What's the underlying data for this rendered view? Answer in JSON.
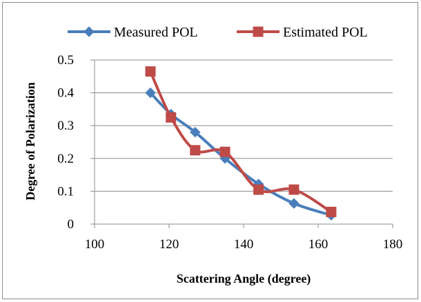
{
  "chart_data": {
    "type": "line",
    "title": "",
    "xlabel": "Scattering Angle (degree)",
    "ylabel": "Degree of Polarization",
    "xlim": [
      100,
      180
    ],
    "ylim": [
      0,
      0.5
    ],
    "x_ticks": [
      "100",
      "120",
      "140",
      "160",
      "180"
    ],
    "y_ticks": [
      "0",
      "0.1",
      "0.2",
      "0.3",
      "0.4",
      "0.5"
    ],
    "grid": "horizontal",
    "legend_position": "top",
    "smooth": true,
    "series": [
      {
        "name": "Measured POL",
        "color": "#4a7ebb",
        "marker": "diamond",
        "points": [
          [
            115,
            0.4
          ],
          [
            120.5,
            0.335
          ],
          [
            127,
            0.28
          ],
          [
            135,
            0.2
          ],
          [
            144,
            0.122
          ],
          [
            153.5,
            0.063
          ],
          [
            163.5,
            0.027
          ]
        ]
      },
      {
        "name": "Estimated POL",
        "color": "#be4b48",
        "marker": "square",
        "points": [
          [
            115,
            0.465
          ],
          [
            120.5,
            0.325
          ],
          [
            127,
            0.225
          ],
          [
            135,
            0.22
          ],
          [
            144,
            0.105
          ],
          [
            153.5,
            0.105
          ],
          [
            163.5,
            0.037
          ]
        ]
      }
    ]
  }
}
